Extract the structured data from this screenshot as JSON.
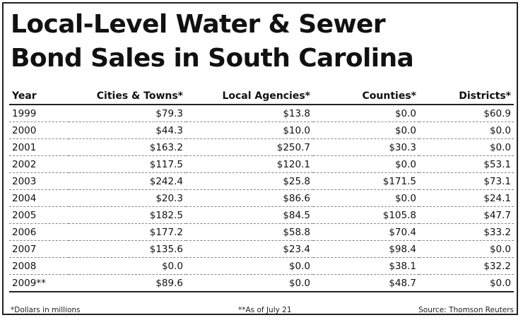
{
  "title_line1": "Local-Level Water & Sewer",
  "title_line2": "Bond Sales in South Carolina",
  "chart_data": {
    "type": "table",
    "title": "Local-Level Water & Sewer Bond Sales in South Carolina",
    "columns": [
      "Year",
      "Cities & Towns*",
      "Local Agencies*",
      "Counties*",
      "Districts*"
    ],
    "rows": [
      [
        "1999",
        "$79.3",
        "$13.8",
        "$0.0",
        "$60.9"
      ],
      [
        "2000",
        "$44.3",
        "$10.0",
        "$0.0",
        "$0.0"
      ],
      [
        "2001",
        "$163.2",
        "$250.7",
        "$30.3",
        "$0.0"
      ],
      [
        "2002",
        "$117.5",
        "$120.1",
        "$0.0",
        "$53.1"
      ],
      [
        "2003",
        "$242.4",
        "$25.8",
        "$171.5",
        "$73.1"
      ],
      [
        "2004",
        "$20.3",
        "$86.6",
        "$0.0",
        "$24.1"
      ],
      [
        "2005",
        "$182.5",
        "$84.5",
        "$105.8",
        "$47.7"
      ],
      [
        "2006",
        "$177.2",
        "$58.8",
        "$70.4",
        "$33.2"
      ],
      [
        "2007",
        "$135.6",
        "$23.4",
        "$98.4",
        "$0.0"
      ],
      [
        "2008",
        "$0.0",
        "$0.0",
        "$38.1",
        "$32.2"
      ],
      [
        "2009**",
        "$89.6",
        "$0.0",
        "$48.7",
        "$0.0"
      ]
    ]
  },
  "footnotes": {
    "dollars": "*Dollars in millions",
    "as_of": "**As of July 21",
    "source": "Source: Thomson Reuters"
  }
}
